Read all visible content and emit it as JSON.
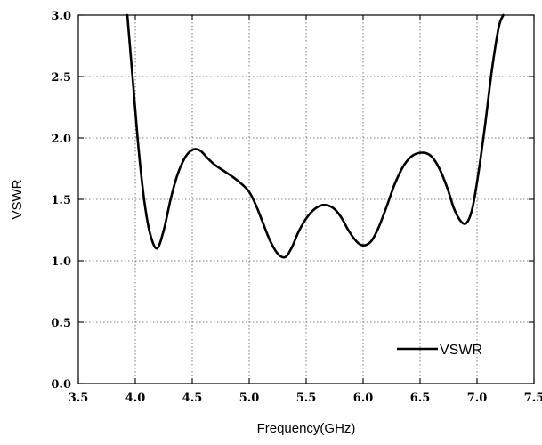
{
  "chart_data": {
    "type": "line",
    "title": "",
    "xlabel": "Frequency(GHz)",
    "ylabel": "VSWR",
    "xlim": [
      3.5,
      7.5
    ],
    "ylim": [
      0.0,
      3.0
    ],
    "x_ticks": [
      "3.5",
      "4.0",
      "4.5",
      "5.0",
      "5.5",
      "6.0",
      "6.5",
      "7.0",
      "7.5"
    ],
    "y_ticks": [
      "0.0",
      "0.5",
      "1.0",
      "1.5",
      "2.0",
      "2.5",
      "3.0"
    ],
    "grid": true,
    "legend_position": "bottom-right",
    "series": [
      {
        "name": "VSWR",
        "color": "#000000",
        "x": [
          3.93,
          3.98,
          4.03,
          4.08,
          4.13,
          4.19,
          4.25,
          4.31,
          4.37,
          4.43,
          4.48,
          4.53,
          4.58,
          4.63,
          4.7,
          4.78,
          4.86,
          4.94,
          5.0,
          5.06,
          5.12,
          5.18,
          5.24,
          5.29,
          5.33,
          5.38,
          5.43,
          5.49,
          5.56,
          5.63,
          5.69,
          5.75,
          5.81,
          5.87,
          5.93,
          5.98,
          6.03,
          6.08,
          6.14,
          6.21,
          6.28,
          6.36,
          6.44,
          6.53,
          6.6,
          6.67,
          6.74,
          6.8,
          6.86,
          6.91,
          6.96,
          7.01,
          7.07,
          7.13,
          7.19,
          7.23
        ],
        "y": [
          3.0,
          2.45,
          1.9,
          1.48,
          1.22,
          1.1,
          1.25,
          1.5,
          1.7,
          1.83,
          1.89,
          1.91,
          1.89,
          1.84,
          1.78,
          1.73,
          1.68,
          1.62,
          1.56,
          1.45,
          1.31,
          1.17,
          1.07,
          1.03,
          1.04,
          1.12,
          1.23,
          1.33,
          1.41,
          1.45,
          1.45,
          1.42,
          1.35,
          1.25,
          1.17,
          1.13,
          1.13,
          1.17,
          1.28,
          1.45,
          1.63,
          1.78,
          1.86,
          1.88,
          1.85,
          1.75,
          1.59,
          1.42,
          1.32,
          1.31,
          1.43,
          1.7,
          2.1,
          2.55,
          2.9,
          3.0
        ]
      }
    ]
  }
}
